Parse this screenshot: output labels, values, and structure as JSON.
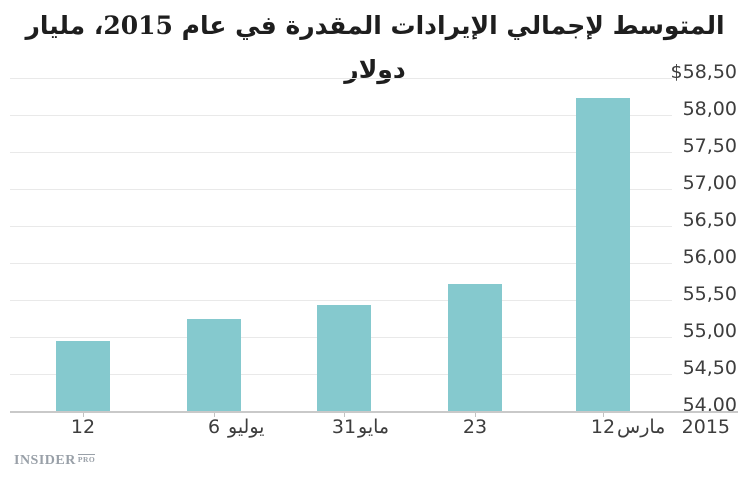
{
  "title": "المتوسط لإجمالي الإيرادات المقدرة في عام 2015، مليار دولار",
  "branding": {
    "name": "INSIDER",
    "suffix": "PRO"
  },
  "chart_data": {
    "type": "bar",
    "title": "المتوسط لإجمالي الإيرادات المقدرة في عام 2015، مليار دولار",
    "ylabel": "مليار دولار",
    "xlabel": "2015",
    "rtl_time_axis": true,
    "grid": true,
    "legend": false,
    "ylim": [
      54.0,
      58.5
    ],
    "bar_color": "#85c9ce",
    "categories": [
      "12",
      "6 يوليو",
      "31 مايو",
      "23",
      "12 مارس"
    ],
    "values": [
      54.94,
      55.25,
      55.43,
      55.71,
      58.23
    ],
    "bars": [
      {
        "day": "12",
        "month": "",
        "value": 54.94
      },
      {
        "day": "6",
        "month": "يوليو",
        "value": 55.25
      },
      {
        "day": "31",
        "month": "مايو",
        "value": 55.43
      },
      {
        "day": "23",
        "month": "",
        "value": 55.71
      },
      {
        "day": "12",
        "month": "مارس",
        "value": 58.23
      }
    ],
    "year_label": "2015",
    "y_ticks": [
      {
        "value": 58.5,
        "label": "$58,50"
      },
      {
        "value": 58.0,
        "label": "58,00"
      },
      {
        "value": 57.5,
        "label": "57,50"
      },
      {
        "value": 57.0,
        "label": "57,00"
      },
      {
        "value": 56.5,
        "label": "56,50"
      },
      {
        "value": 56.0,
        "label": "56,00"
      },
      {
        "value": 55.5,
        "label": "55,50"
      },
      {
        "value": 55.0,
        "label": "55,00"
      },
      {
        "value": 54.5,
        "label": "54,50"
      },
      {
        "value": 54.0,
        "label": "54,00"
      }
    ]
  }
}
